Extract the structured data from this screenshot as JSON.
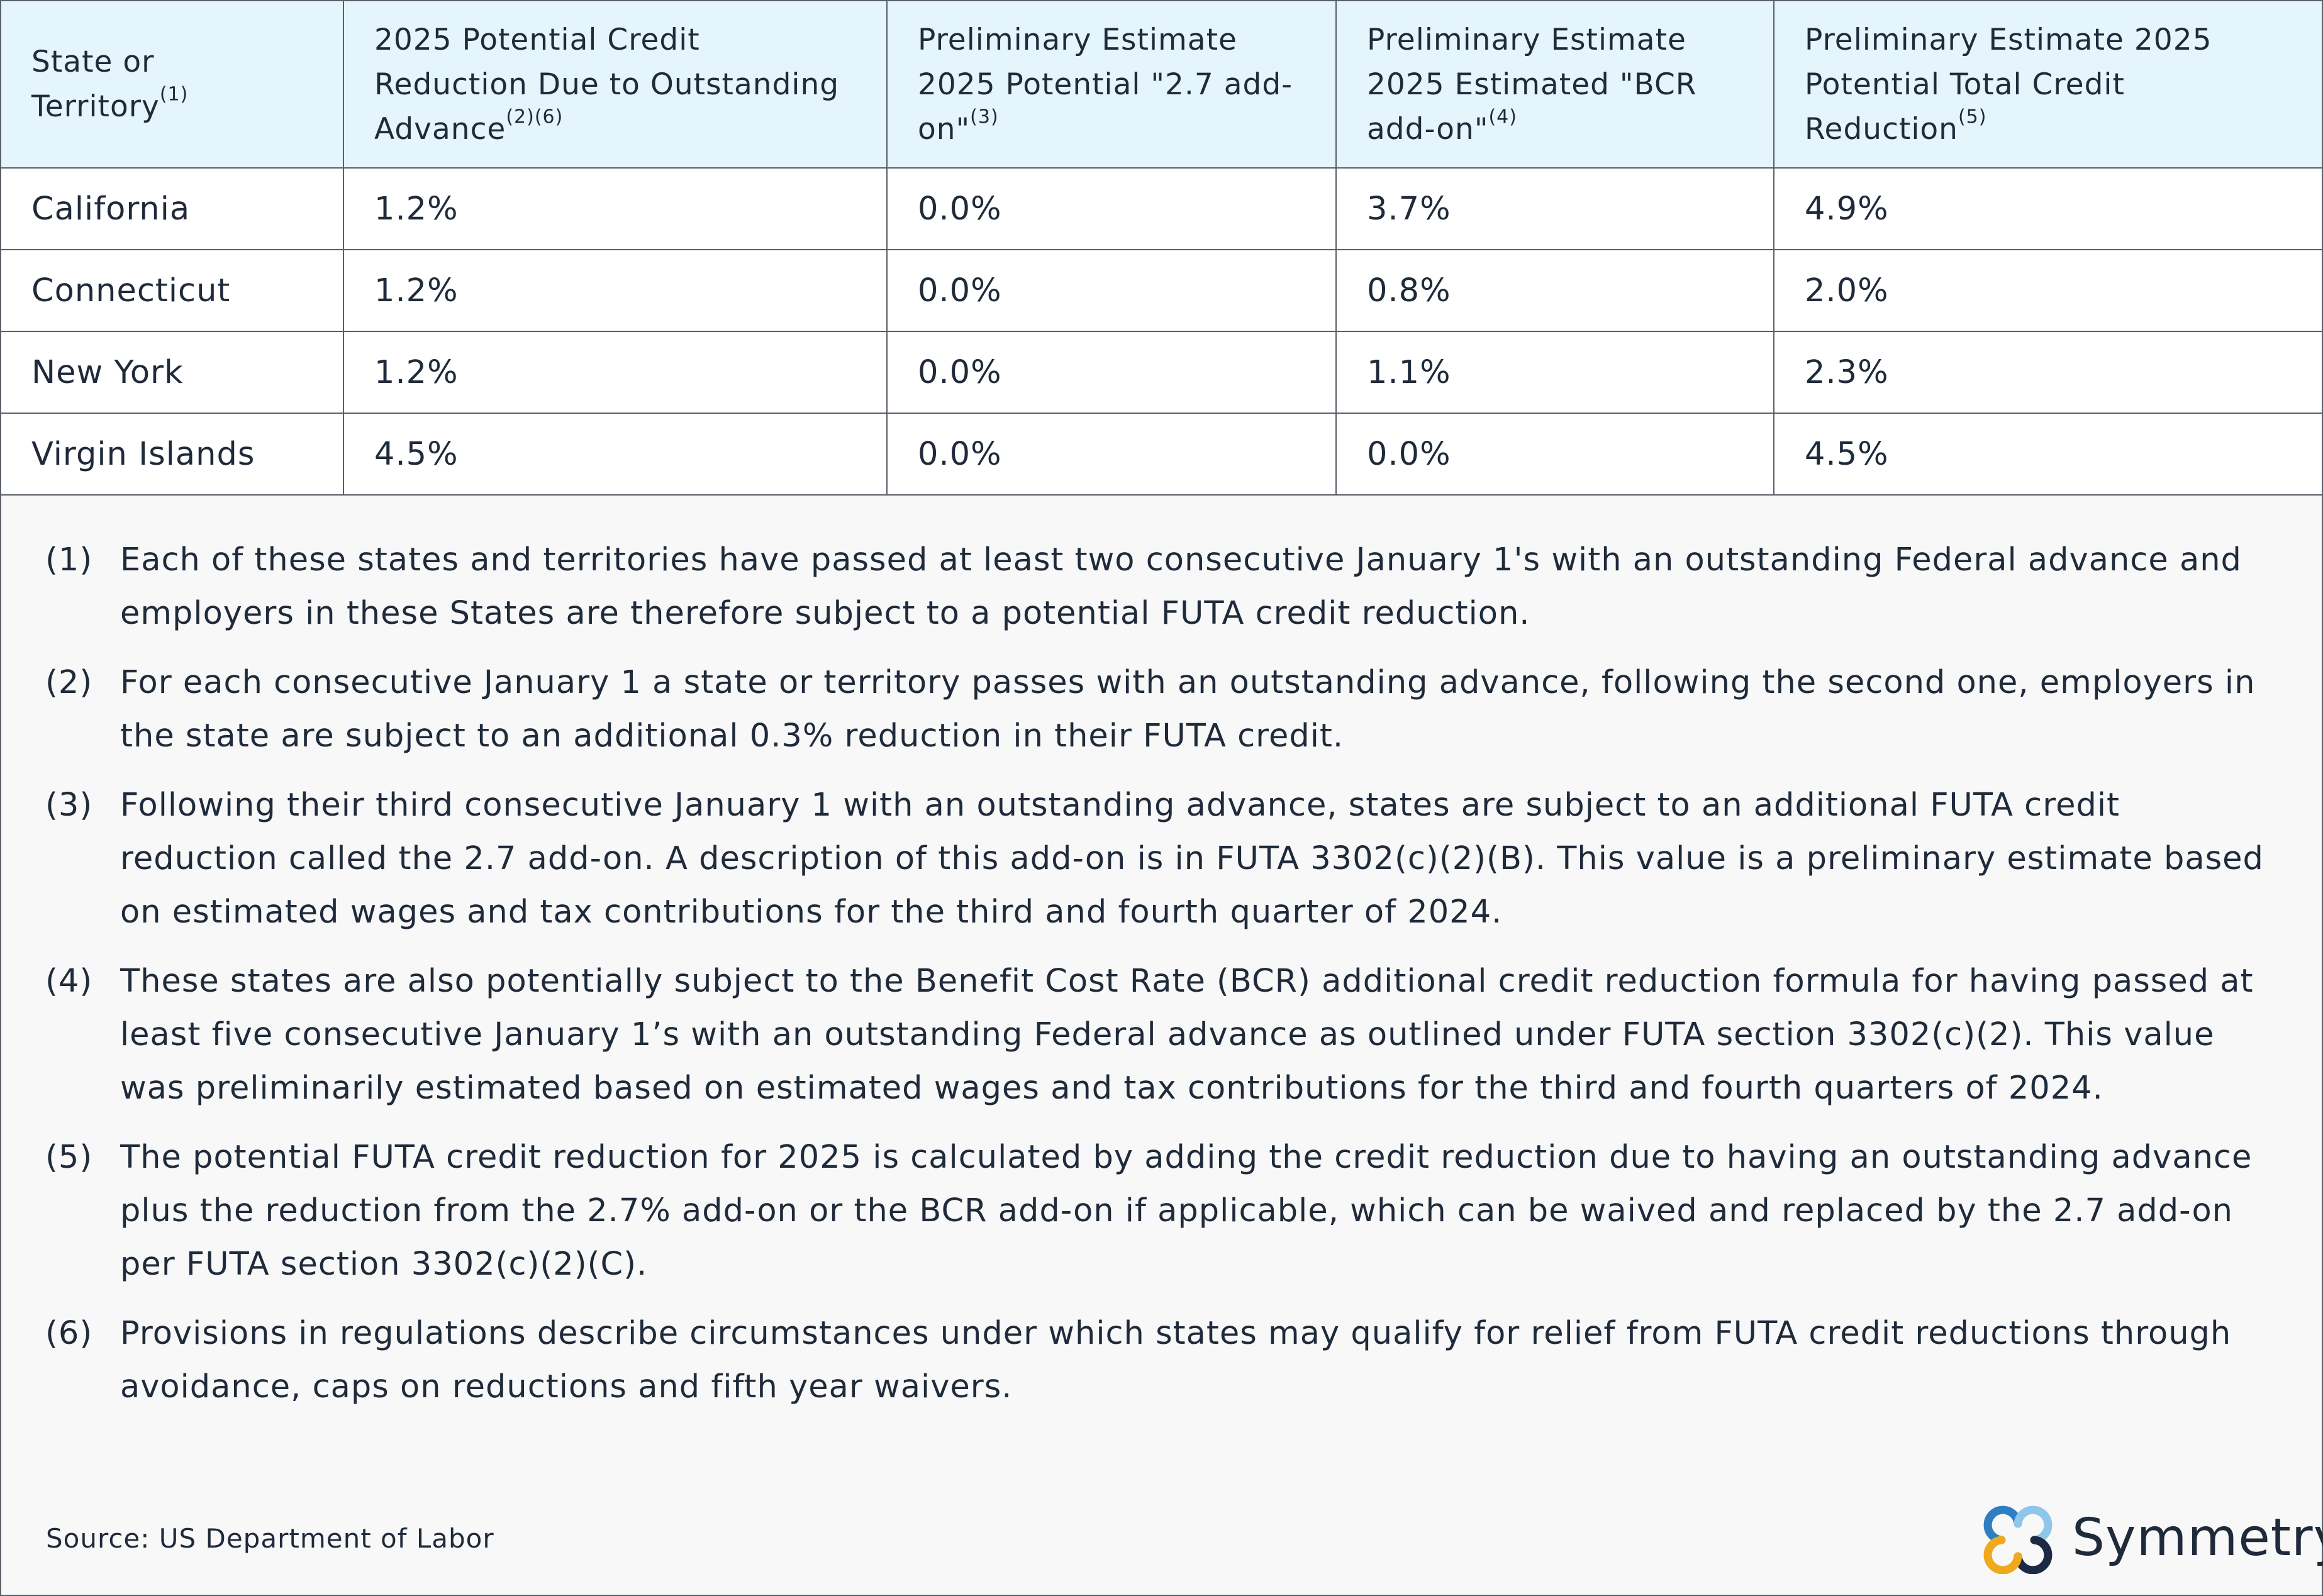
{
  "table": {
    "headers": [
      {
        "text": "State or Territory",
        "sup": "(1)"
      },
      {
        "text": "2025 Potential Credit Reduction Due to Outstanding Advance",
        "sup": "(2)(6)"
      },
      {
        "text": "Preliminary Estimate 2025 Potential \"2.7 add-on\"",
        "sup": "(3)"
      },
      {
        "text": "Preliminary Estimate 2025 Estimated \"BCR add-on\"",
        "sup": "(4)"
      },
      {
        "text": "Preliminary Estimate 2025 Potential Total Credit Reduction",
        "sup": "(5)"
      }
    ],
    "rows": [
      [
        "California",
        "1.2%",
        "0.0%",
        "3.7%",
        "4.9%"
      ],
      [
        "Connecticut",
        "1.2%",
        "0.0%",
        "0.8%",
        "2.0%"
      ],
      [
        "New York",
        "1.2%",
        "0.0%",
        "1.1%",
        "2.3%"
      ],
      [
        "Virgin Islands",
        "4.5%",
        "0.0%",
        "0.0%",
        "4.5%"
      ]
    ]
  },
  "notes": [
    {
      "num": "(1)",
      "text": "Each of these states and territories have passed at least two consecutive January 1's with an outstanding Federal advance and employers in these States are therefore subject to a potential FUTA credit reduction."
    },
    {
      "num": "(2)",
      "text": "For each consecutive January 1 a state or territory passes with an outstanding advance, following the second one, employers in the state are subject to an additional 0.3% reduction in their FUTA credit."
    },
    {
      "num": "(3)",
      "text": "Following their third consecutive January 1 with an outstanding advance, states are subject to an additional FUTA credit reduction called the 2.7 add-on. A description of this add-on is in FUTA 3302(c)(2)(B). This value is a preliminary estimate based on estimated wages and tax contributions for the third and fourth quarter of 2024."
    },
    {
      "num": "(4)",
      "text": "These states are also potentially subject to the Benefit Cost Rate (BCR) additional credit reduction formula for having passed at least five consecutive January 1’s with an outstanding Federal advance as outlined under FUTA section 3302(c)(2). This value was preliminarily estimated based on estimated wages and tax contributions for the third and fourth quarters of 2024."
    },
    {
      "num": "(5)",
      "text": "The potential FUTA credit reduction for 2025 is calculated by adding the credit reduction due to having an outstanding advance plus the reduction from the 2.7% add-on or the BCR add-on if applicable, which can be waived and replaced by the 2.7 add-on per FUTA section 3302(c)(2)(C)."
    },
    {
      "num": "(6)",
      "text": "Provisions in regulations describe circumstances under which states may qualify for relief from FUTA credit reductions through avoidance, caps on reductions and fifth year waivers."
    }
  ],
  "source": "Source: US Department of Labor",
  "brand": {
    "name": "Symmetry",
    "icon": "symmetry-logo-icon",
    "colors": {
      "blue": "#2e7fc1",
      "gold": "#f0a81c",
      "navy": "#1c2a44"
    }
  }
}
